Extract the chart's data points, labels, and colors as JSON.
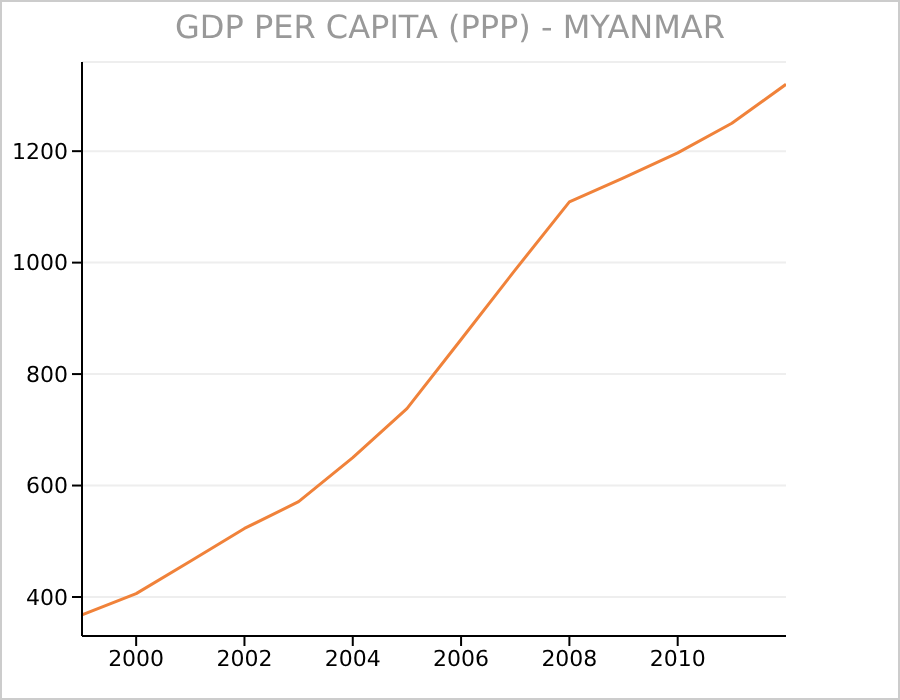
{
  "chart_data": {
    "type": "line",
    "title": "GDP PER CAPITA (PPP) - MYANMAR",
    "x": [
      1999,
      2000,
      2001,
      2002,
      2003,
      2004,
      2005,
      2006,
      2007,
      2008,
      2009,
      2010,
      2011,
      2012
    ],
    "series": [
      {
        "color": "#f0823a",
        "values": [
          368,
          406,
          464,
          523,
          571,
          650,
          738,
          862,
          987,
          1109,
          1152,
          1197,
          1250,
          1320
        ]
      }
    ],
    "xlim": [
      1999,
      2012
    ],
    "xticks": [
      2000,
      2002,
      2004,
      2006,
      2008,
      2010
    ],
    "ylim": [
      330,
      1360
    ],
    "yticks": [
      400,
      600,
      800,
      1000,
      1200
    ],
    "grid": "y",
    "legend": false,
    "marker": "none",
    "line_style": "solid"
  }
}
